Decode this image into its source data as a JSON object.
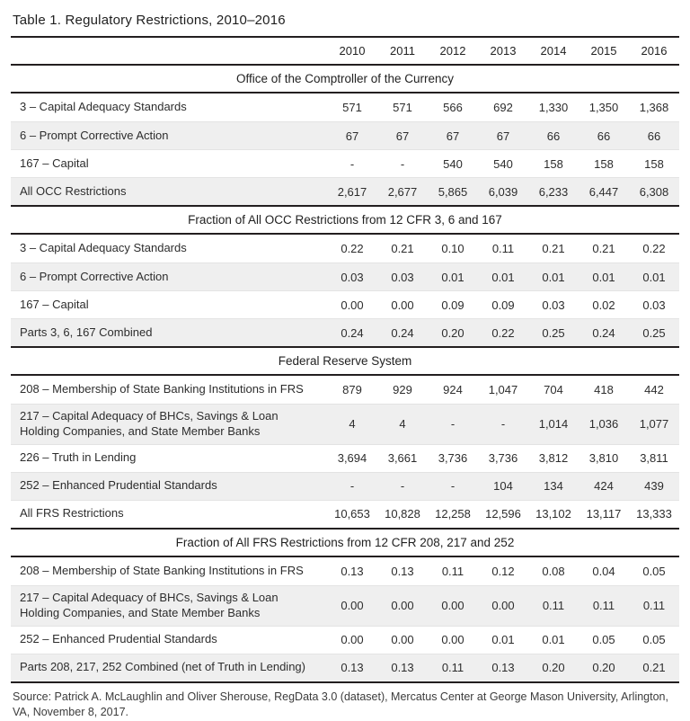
{
  "title": "Table 1. Regulatory Restrictions, 2010–2016",
  "columns": [
    "2010",
    "2011",
    "2012",
    "2013",
    "2014",
    "2015",
    "2016"
  ],
  "sections": [
    {
      "header": "Office of the Comptroller of the Currency",
      "rows": [
        {
          "label": "3 – Capital Adequacy Standards",
          "values": [
            "571",
            "571",
            "566",
            "692",
            "1,330",
            "1,350",
            "1,368"
          ]
        },
        {
          "label": "6 – Prompt Corrective Action",
          "values": [
            "67",
            "67",
            "67",
            "67",
            "66",
            "66",
            "66"
          ]
        },
        {
          "label": "167 – Capital",
          "values": [
            "-",
            "-",
            "540",
            "540",
            "158",
            "158",
            "158"
          ]
        },
        {
          "label": "All OCC Restrictions",
          "values": [
            "2,617",
            "2,677",
            "5,865",
            "6,039",
            "6,233",
            "6,447",
            "6,308"
          ]
        }
      ]
    },
    {
      "header": "Fraction of All OCC Restrictions from 12 CFR 3, 6 and 167",
      "rows": [
        {
          "label": "3 – Capital Adequacy Standards",
          "values": [
            "0.22",
            "0.21",
            "0.10",
            "0.11",
            "0.21",
            "0.21",
            "0.22"
          ]
        },
        {
          "label": "6 – Prompt Corrective Action",
          "values": [
            "0.03",
            "0.03",
            "0.01",
            "0.01",
            "0.01",
            "0.01",
            "0.01"
          ]
        },
        {
          "label": "167 – Capital",
          "values": [
            "0.00",
            "0.00",
            "0.09",
            "0.09",
            "0.03",
            "0.02",
            "0.03"
          ]
        },
        {
          "label": "Parts 3, 6, 167 Combined",
          "values": [
            "0.24",
            "0.24",
            "0.20",
            "0.22",
            "0.25",
            "0.24",
            "0.25"
          ]
        }
      ]
    },
    {
      "header": "Federal Reserve System",
      "rows": [
        {
          "label": "208 – Membership of State Banking Institutions in FRS",
          "values": [
            "879",
            "929",
            "924",
            "1,047",
            "704",
            "418",
            "442"
          ]
        },
        {
          "label": "217 – Capital Adequacy of BHCs, Savings & Loan Holding Companies, and State Member Banks",
          "values": [
            "4",
            "4",
            "-",
            "-",
            "1,014",
            "1,036",
            "1,077"
          ]
        },
        {
          "label": "226 – Truth in Lending",
          "values": [
            "3,694",
            "3,661",
            "3,736",
            "3,736",
            "3,812",
            "3,810",
            "3,811"
          ]
        },
        {
          "label": "252 – Enhanced Prudential Standards",
          "values": [
            "-",
            "-",
            "-",
            "104",
            "134",
            "424",
            "439"
          ]
        },
        {
          "label": "All FRS Restrictions",
          "values": [
            "10,653",
            "10,828",
            "12,258",
            "12,596",
            "13,102",
            "13,117",
            "13,333"
          ]
        }
      ]
    },
    {
      "header": "Fraction of All FRS Restrictions from 12 CFR 208, 217 and 252",
      "rows": [
        {
          "label": "208 – Membership of State Banking Institutions in FRS",
          "values": [
            "0.13",
            "0.13",
            "0.11",
            "0.12",
            "0.08",
            "0.04",
            "0.05"
          ]
        },
        {
          "label": "217 – Capital Adequacy of BHCs, Savings & Loan Holding Companies, and State Member Banks",
          "values": [
            "0.00",
            "0.00",
            "0.00",
            "0.00",
            "0.11",
            "0.11",
            "0.11"
          ]
        },
        {
          "label": "252 – Enhanced Prudential Standards",
          "values": [
            "0.00",
            "0.00",
            "0.00",
            "0.01",
            "0.01",
            "0.05",
            "0.05"
          ]
        },
        {
          "label": "Parts 208, 217, 252 Combined (net of Truth in Lending)",
          "values": [
            "0.13",
            "0.13",
            "0.11",
            "0.13",
            "0.20",
            "0.20",
            "0.21"
          ]
        }
      ]
    }
  ],
  "source": "Source: Patrick A. McLaughlin and Oliver Sherouse, RegData 3.0 (dataset), Mercatus Center at George Mason University, Arlington, VA, November 8, 2017."
}
